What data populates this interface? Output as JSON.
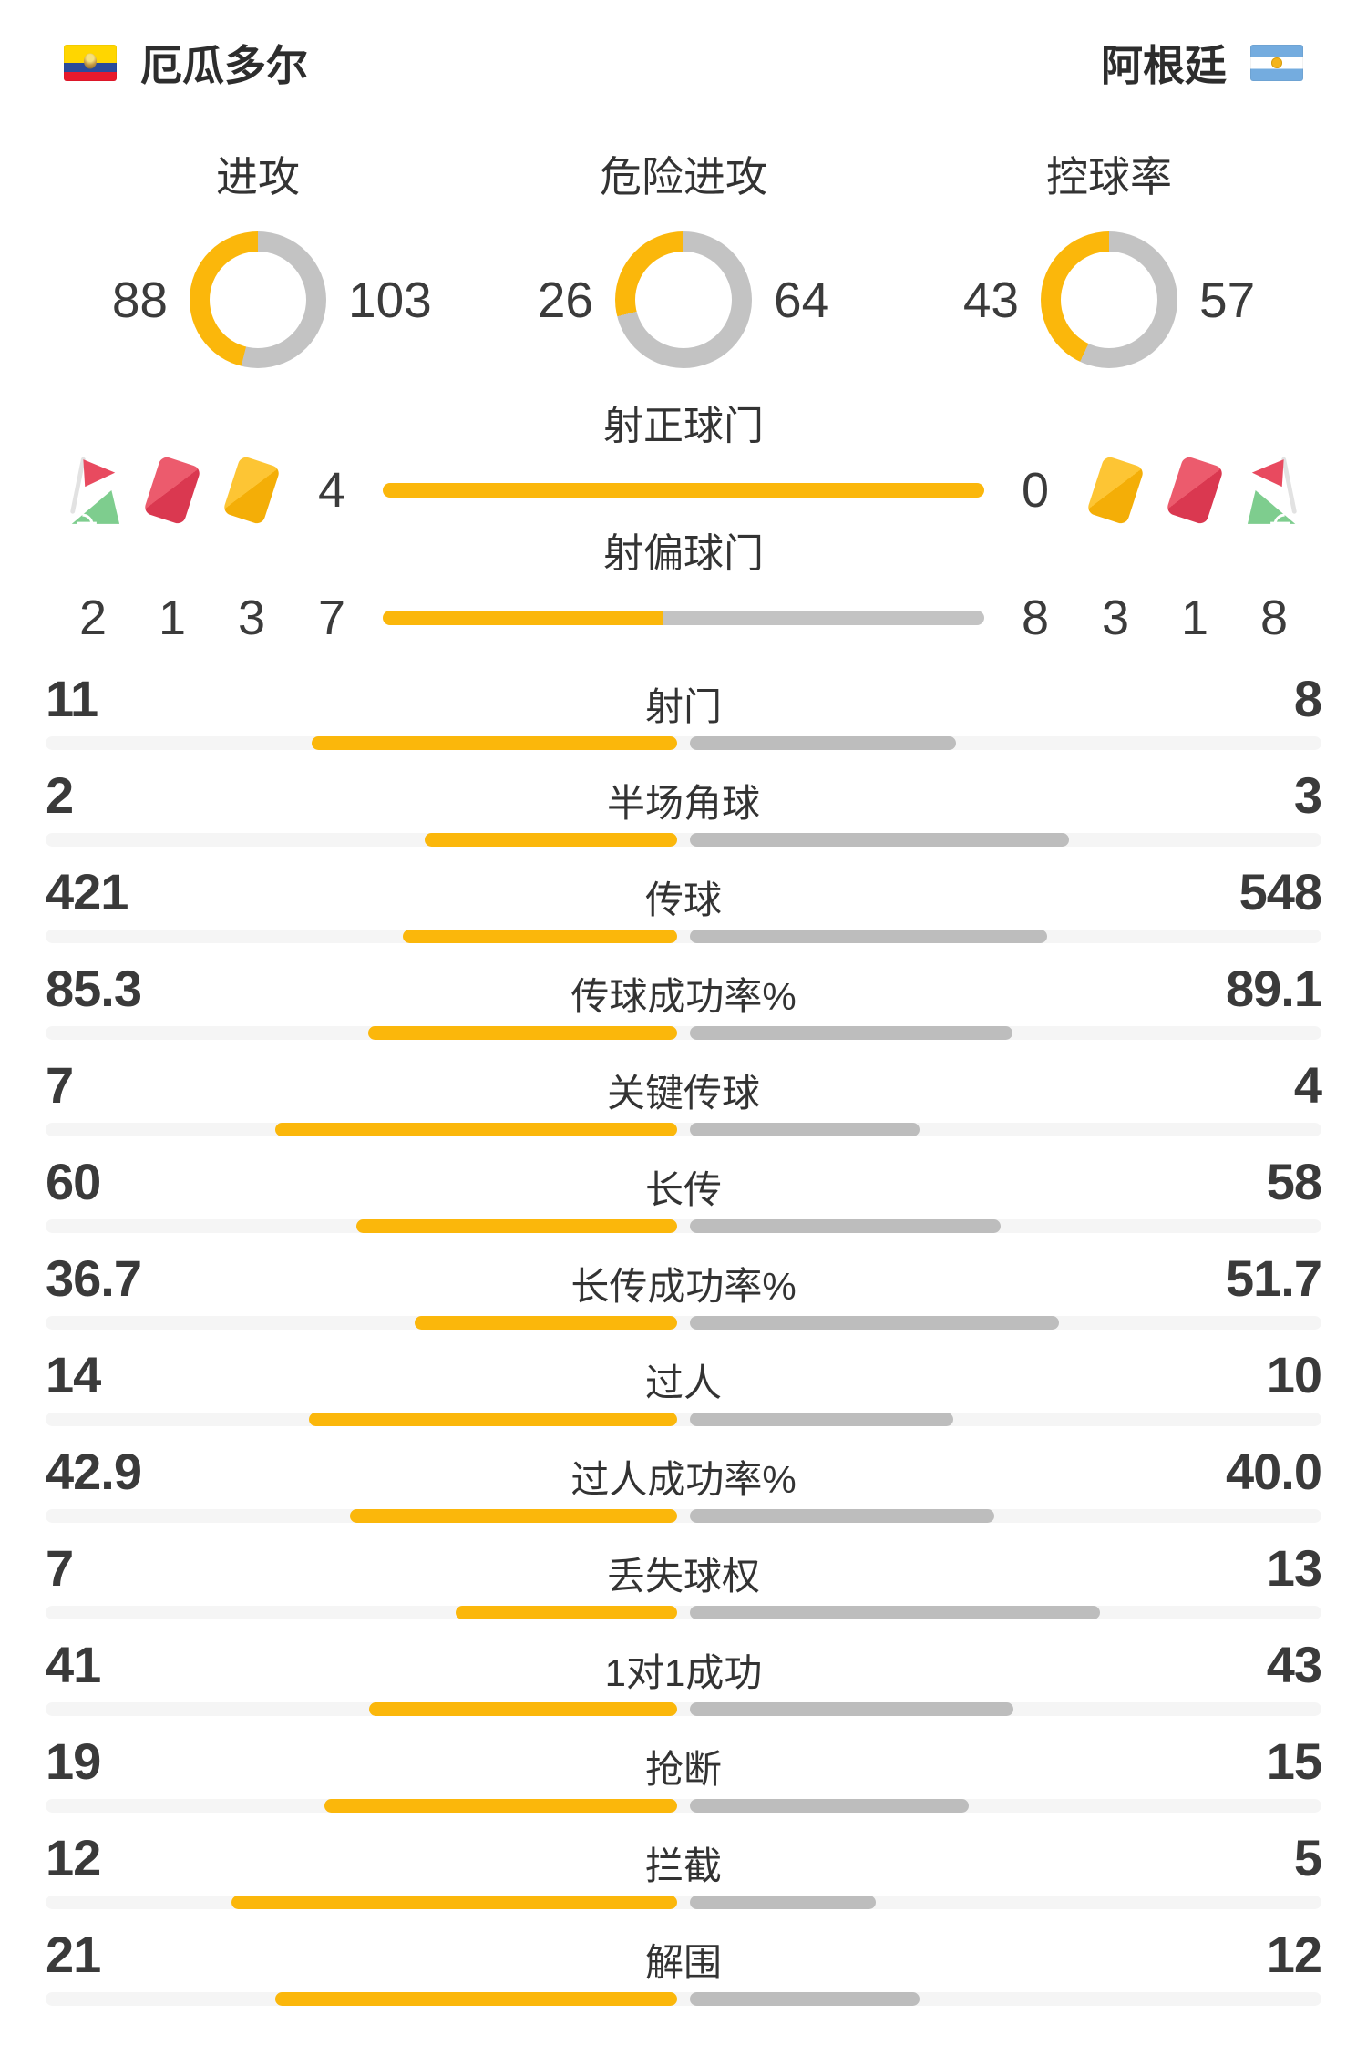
{
  "header": {
    "home": {
      "name": "厄瓜多尔",
      "flag": "ecuador-flag"
    },
    "away": {
      "name": "阿根廷",
      "flag": "argentina-flag"
    }
  },
  "colors": {
    "home_accent": "#FBB70B",
    "away_gray": "#C3C3C3",
    "stat_away_gray": "#BDBDBD",
    "track": "#F5F5F5",
    "red_card": "#DA3850",
    "yellow_card": "#F4AE07",
    "corner_flag_red": "#E84A5F",
    "corner_wedge_green": "#7ECD8E"
  },
  "chart_data": {
    "type": "table",
    "teams": [
      "厄瓜多尔",
      "阿根廷"
    ],
    "donuts": [
      {
        "label": "进攻",
        "home": 88,
        "away": 103
      },
      {
        "label": "危险进攻",
        "home": 26,
        "away": 64
      },
      {
        "label": "控球率",
        "home": 43,
        "away": 57
      }
    ],
    "shots": [
      {
        "label": "射正球门",
        "home": 4,
        "away": 0
      },
      {
        "label": "射偏球门",
        "home": 7,
        "away": 8
      }
    ],
    "discipline": {
      "home": {
        "icons": [
          "corner-flag",
          "red-card",
          "yellow-card"
        ],
        "counts": [
          2,
          1,
          3
        ]
      },
      "away": {
        "icons": [
          "yellow-card",
          "red-card",
          "corner-flag"
        ],
        "counts": [
          3,
          1,
          8
        ]
      }
    },
    "stats": [
      {
        "label": "射门",
        "home": "11",
        "away": "8"
      },
      {
        "label": "半场角球",
        "home": "2",
        "away": "3"
      },
      {
        "label": "传球",
        "home": "421",
        "away": "548"
      },
      {
        "label": "传球成功率%",
        "home": "85.3",
        "away": "89.1"
      },
      {
        "label": "关键传球",
        "home": "7",
        "away": "4"
      },
      {
        "label": "长传",
        "home": "60",
        "away": "58"
      },
      {
        "label": "长传成功率%",
        "home": "36.7",
        "away": "51.7"
      },
      {
        "label": "过人",
        "home": "14",
        "away": "10"
      },
      {
        "label": "过人成功率%",
        "home": "42.9",
        "away": "40.0"
      },
      {
        "label": "丢失球权",
        "home": "7",
        "away": "13"
      },
      {
        "label": "1对1成功",
        "home": "41",
        "away": "43"
      },
      {
        "label": "抢断",
        "home": "19",
        "away": "15"
      },
      {
        "label": "拦截",
        "home": "12",
        "away": "5"
      },
      {
        "label": "解围",
        "home": "21",
        "away": "12"
      }
    ]
  }
}
